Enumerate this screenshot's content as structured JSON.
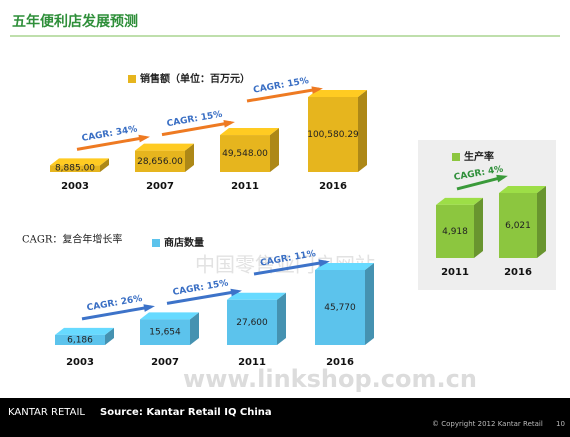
{
  "title": "五年便利店发展预测",
  "note": "CAGR：复合年增长率",
  "watermark": [
    "中国零售业门户网站",
    "www.linkshop.com.cn"
  ],
  "footer": {
    "brand": "KANTAR RETAIL",
    "source": "Source: Kantar Retail IQ China",
    "copyright": "© Copyright 2012 Kantar Retail",
    "page": "10"
  },
  "chart_data": [
    {
      "type": "bar",
      "categories": [
        "2003",
        "2007",
        "2011",
        "2016"
      ],
      "series": [
        {
          "name": "销售额（单位：百万元）",
          "color": "#e6b51e",
          "values": [
            8885.0,
            28656.0,
            49548.0,
            100580.29
          ],
          "value_labels": [
            "8,885.00",
            "28,656.00",
            "49,548.00",
            "100,580.29"
          ]
        }
      ],
      "annotations": [
        "CAGR: 34%",
        "CAGR: 15%",
        "CAGR: 15%"
      ],
      "arrow_color": "#ee7a22"
    },
    {
      "type": "bar",
      "categories": [
        "2003",
        "2007",
        "2011",
        "2016"
      ],
      "series": [
        {
          "name": "商店数量",
          "color": "#5cc3ec",
          "values": [
            6186,
            15654,
            27600,
            45770
          ],
          "value_labels": [
            "6,186",
            "15,654",
            "27,600",
            "45,770"
          ]
        }
      ],
      "annotations": [
        "CAGR: 26%",
        "CAGR: 15%",
        "CAGR: 11%"
      ],
      "arrow_color": "#3d73c9"
    },
    {
      "type": "bar",
      "categories": [
        "2011",
        "2016"
      ],
      "series": [
        {
          "name": "生产率",
          "color": "#8cc63f",
          "values": [
            4918,
            6021
          ],
          "value_labels": [
            "4,918",
            "6,021"
          ]
        }
      ],
      "annotations": [
        "CAGR: 4%"
      ],
      "arrow_color": "#3a9a3a"
    }
  ]
}
